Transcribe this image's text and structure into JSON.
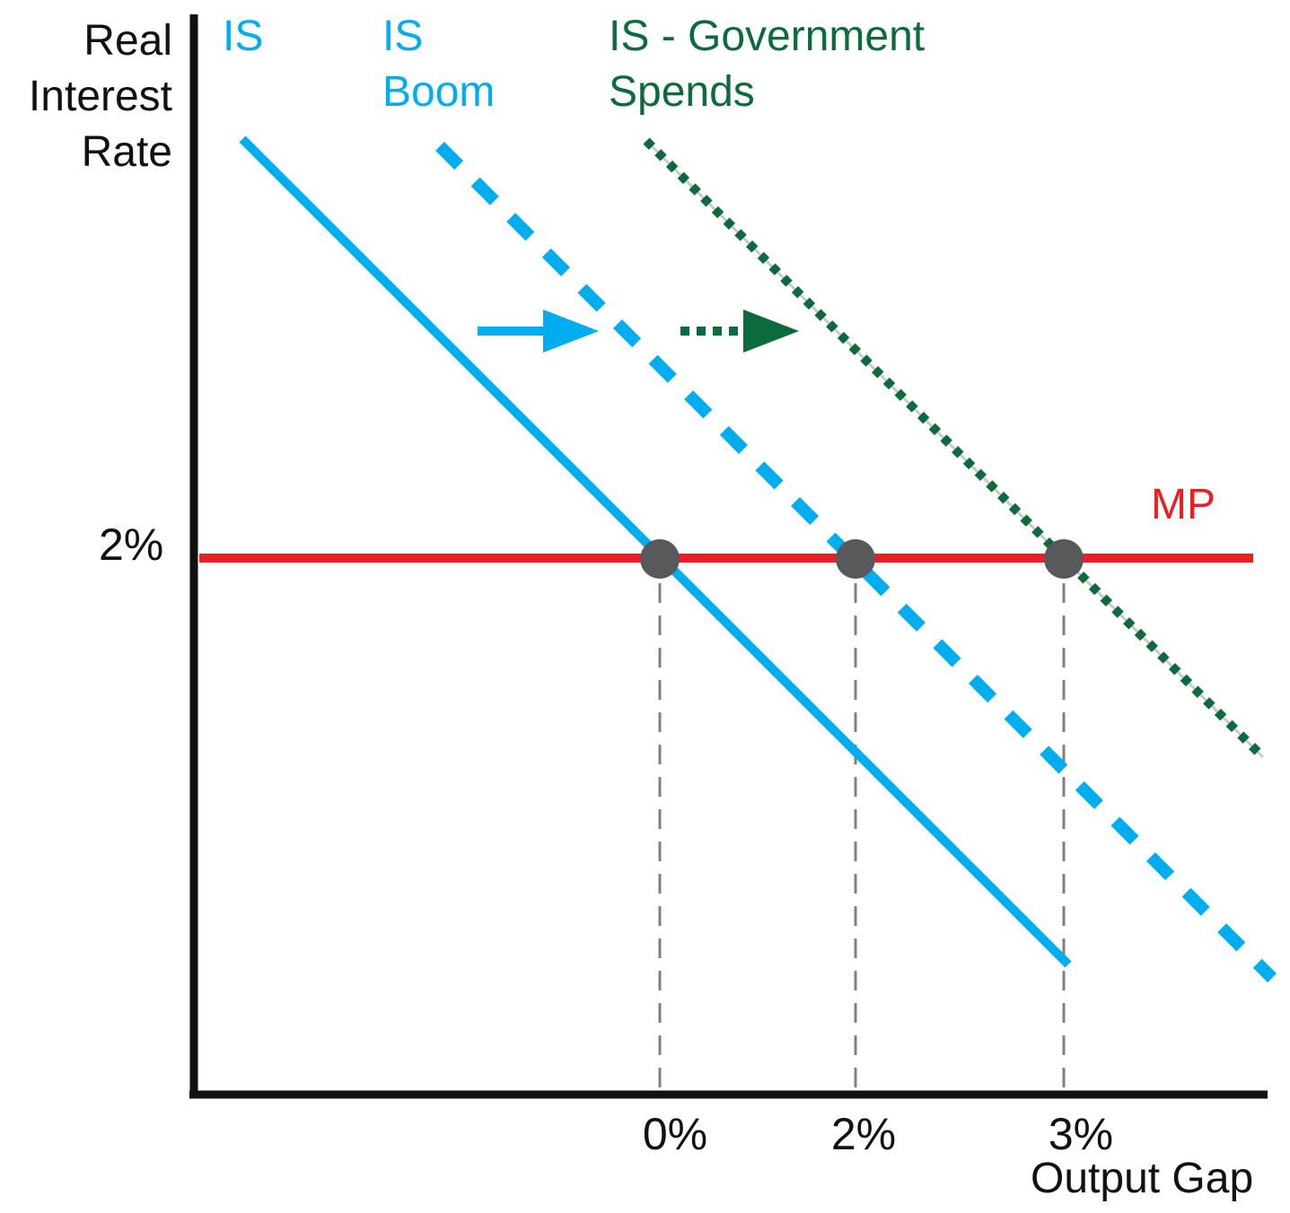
{
  "chart_data": {
    "type": "line",
    "title": "",
    "ylabel": "Real\nInterest\nRate",
    "xlabel": "Output Gap",
    "x_ticks": [
      "0%",
      "2%",
      "3%"
    ],
    "y_ticks": [
      "2%"
    ],
    "series": [
      {
        "name": "IS",
        "style": "solid",
        "color": "#00adef"
      },
      {
        "name": "IS\nBoom",
        "style": "dashed",
        "color": "#00adef"
      },
      {
        "name": "IS - Government\nSpends",
        "style": "dotted",
        "color": "#0b6b3a"
      },
      {
        "name": "MP",
        "style": "solid",
        "color": "#ee1d24",
        "y": "2%"
      }
    ],
    "equilibria": [
      {
        "x": "0%",
        "y": "2%"
      },
      {
        "x": "2%",
        "y": "2%"
      },
      {
        "x": "3%",
        "y": "2%"
      }
    ],
    "shifts": [
      {
        "from": "IS",
        "to": "IS Boom",
        "style": "solid",
        "color": "#00adef"
      },
      {
        "from": "IS Boom",
        "to": "IS - Government Spends",
        "style": "dotted",
        "color": "#0b6b3a"
      }
    ],
    "grid": false
  },
  "colors": {
    "axis": "#111111",
    "is": "#00adef",
    "gov": "#0b6b3a",
    "mp": "#ee1d24",
    "point": "#58595b",
    "guide": "#808080"
  }
}
